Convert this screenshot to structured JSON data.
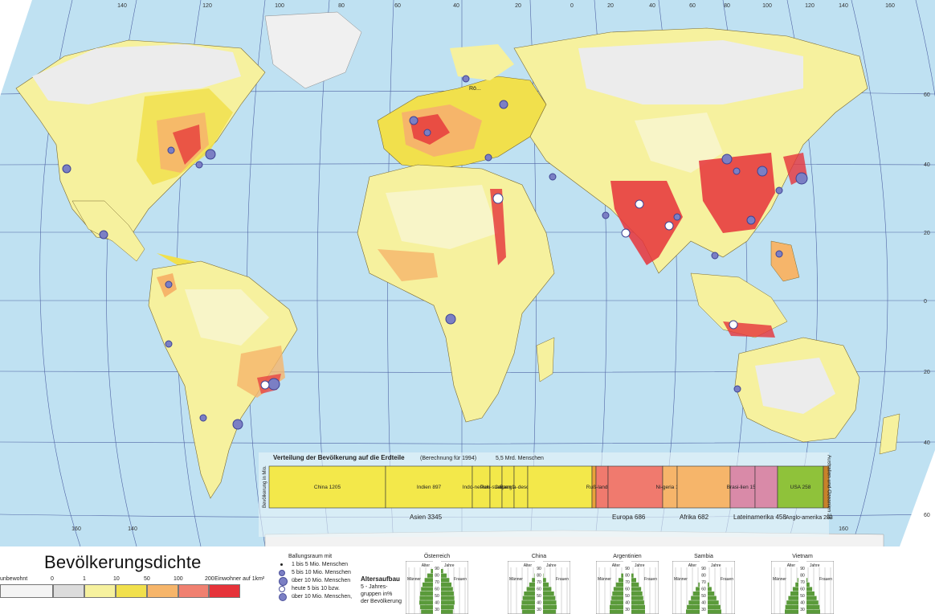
{
  "map_title": "Bevölkerungsdichte",
  "density_legend": {
    "labels": [
      "unbewohnt",
      "0",
      "1",
      "10",
      "50",
      "100",
      "200",
      "Einwohner auf 1km²"
    ],
    "colors": [
      "#f4f4f4",
      "#dcdcdc",
      "#f6f19e",
      "#f1e04c",
      "#f6b56a",
      "#f08070",
      "#e6333a"
    ]
  },
  "city_legend": {
    "heading": "Ballungsraum mit",
    "items": [
      "1 bis 5 Mio. Menschen",
      "5 bis 10 Mio. Menschen",
      "über 10 Mio. Menschen",
      "heute 5 bis 10 bzw.",
      "über 10 Mio. Menschen,"
    ]
  },
  "age_structure": {
    "title": "Altersaufbau",
    "subtitle_lines": [
      "5 - Jahres-",
      "gruppen in%",
      "der Bevölkerung"
    ],
    "countries": [
      "Österreich",
      "China",
      "Argentinien",
      "Sambia",
      "Vietnam"
    ],
    "axis_labels": {
      "age": "Alter",
      "years": "Jahre",
      "men": "Männer",
      "women": "Frauen"
    },
    "age_ticks": [
      "90",
      "80",
      "70",
      "60",
      "50",
      "40",
      "30"
    ]
  },
  "distribution_chart": {
    "title": "Verteilung der Bevölkerung auf die Erdteile",
    "calc_note": "(Berechnung für 1994)",
    "total": "5,5 Mrd. Menschen",
    "axis_label": "Bevölkerung in Mio.",
    "segments": [
      {
        "label": "China 1205",
        "color": "#f3e84a"
      },
      {
        "label": "Indien 897",
        "color": "#f3e84a"
      },
      {
        "label": "Indo-nesien 195",
        "color": "#f3e84a"
      },
      {
        "label": "Paki-stan 128",
        "color": "#f3e84a"
      },
      {
        "label": "Ja-pan 125",
        "color": "#f3e84a"
      },
      {
        "label": "Bangla-desch 122",
        "color": "#f3e84a"
      },
      {
        "label": "",
        "color": "#f3e84a"
      },
      {
        "label": "",
        "color": "#e8a23a"
      },
      {
        "label": "Ruß-land 149",
        "color": "#f07a6e"
      },
      {
        "label": "",
        "color": "#f07a6e"
      },
      {
        "label": "Ni-geria 115",
        "color": "#f6b56a"
      },
      {
        "label": "",
        "color": "#f6b56a"
      },
      {
        "label": "Brasi-lien 157",
        "color": "#d98aa8"
      },
      {
        "label": "",
        "color": "#d98aa8"
      },
      {
        "label": "USA 258",
        "color": "#8fc23a"
      },
      {
        "label": "Australien und Ozeanien 28",
        "color": "#c8822a"
      }
    ],
    "group_labels": [
      "Asien 3345",
      "Europa 686",
      "Afrika 682",
      "Lateinamerika 458",
      "Anglo-amerika 283"
    ]
  },
  "top_ticks": [
    "140",
    "120",
    "100",
    "80",
    "60",
    "40",
    "20",
    "0",
    "20",
    "40",
    "60",
    "80",
    "100",
    "120",
    "140",
    "160"
  ],
  "side_ticks": [
    "60",
    "40",
    "20",
    "0",
    "20",
    "40",
    "60"
  ],
  "bottom_ticks": [
    "160",
    "140",
    "160"
  ],
  "place_label": "Rö..."
}
